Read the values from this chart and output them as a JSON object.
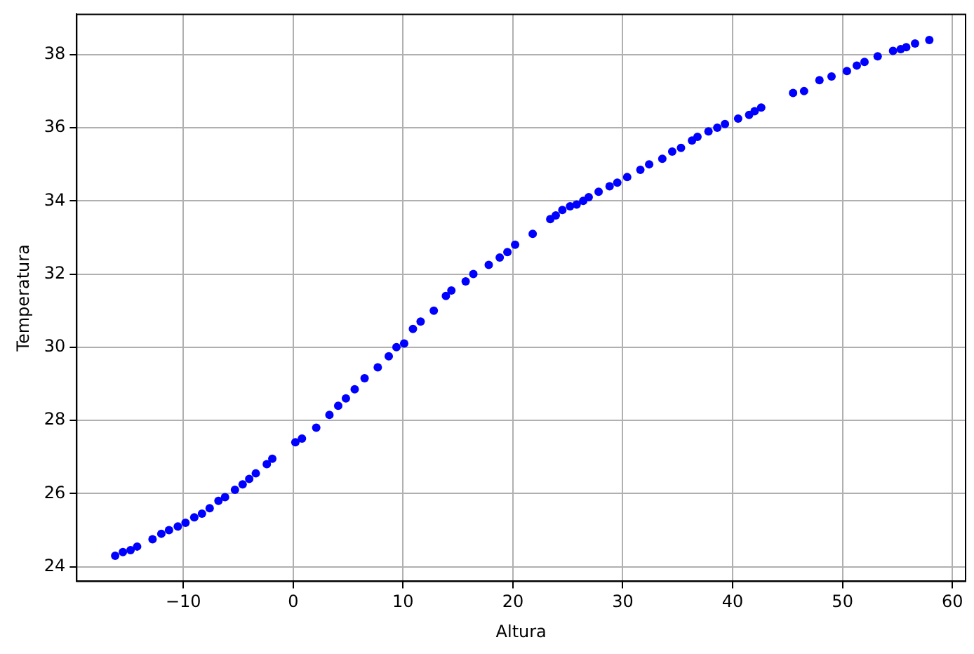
{
  "chart_data": {
    "type": "scatter",
    "xlabel": "Altura",
    "ylabel": "Temperatura",
    "xlim": [
      -19.7,
      61.2
    ],
    "ylim": [
      23.6,
      39.1
    ],
    "xticks": [
      {
        "value": -10,
        "label": "−10"
      },
      0,
      10,
      20,
      30,
      40,
      50,
      60
    ],
    "yticks": [
      24,
      26,
      28,
      30,
      32,
      34,
      36,
      38
    ],
    "grid": true,
    "marker": "circle",
    "legend": false,
    "series": [
      {
        "color": "#0000ff",
        "x": [
          -16.2,
          -15.5,
          -14.8,
          -14.2,
          -12.8,
          -12.0,
          -11.3,
          -10.5,
          -9.8,
          -9.0,
          -8.3,
          -7.6,
          -6.8,
          -6.2,
          -5.3,
          -4.6,
          -4.0,
          -3.4,
          -2.4,
          -1.9,
          0.2,
          0.8,
          2.1,
          3.3,
          4.1,
          4.8,
          5.6,
          6.5,
          7.7,
          8.7,
          9.4,
          10.1,
          10.9,
          11.6,
          12.8,
          13.9,
          14.4,
          15.7,
          16.4,
          17.8,
          18.8,
          19.5,
          20.2,
          21.8,
          23.4,
          23.9,
          24.5,
          25.2,
          25.8,
          26.4,
          26.9,
          27.8,
          28.8,
          29.5,
          30.4,
          31.6,
          32.4,
          33.6,
          34.5,
          35.3,
          36.3,
          36.8,
          37.8,
          38.6,
          39.3,
          40.5,
          41.5,
          42.0,
          42.6,
          45.5,
          46.5,
          47.9,
          49.0,
          50.4,
          51.3,
          52.0,
          53.2,
          54.6,
          55.3,
          55.8,
          56.6,
          57.9
        ],
        "values": [
          24.3,
          24.4,
          24.45,
          24.55,
          24.75,
          24.9,
          25.0,
          25.1,
          25.2,
          25.35,
          25.45,
          25.6,
          25.8,
          25.9,
          26.1,
          26.25,
          26.4,
          26.55,
          26.8,
          26.95,
          27.4,
          27.5,
          27.8,
          28.15,
          28.4,
          28.6,
          28.85,
          29.15,
          29.45,
          29.75,
          30.0,
          30.1,
          30.5,
          30.7,
          31.0,
          31.4,
          31.55,
          31.8,
          32.0,
          32.25,
          32.45,
          32.6,
          32.8,
          33.1,
          33.5,
          33.6,
          33.75,
          33.85,
          33.9,
          34.0,
          34.1,
          34.25,
          34.4,
          34.5,
          34.65,
          34.85,
          35.0,
          35.15,
          35.35,
          35.45,
          35.65,
          35.75,
          35.9,
          36.0,
          36.1,
          36.25,
          36.35,
          36.45,
          36.55,
          36.95,
          37.0,
          37.3,
          37.4,
          37.55,
          37.7,
          37.8,
          37.95,
          38.1,
          38.15,
          38.2,
          38.3,
          38.4
        ]
      }
    ]
  }
}
